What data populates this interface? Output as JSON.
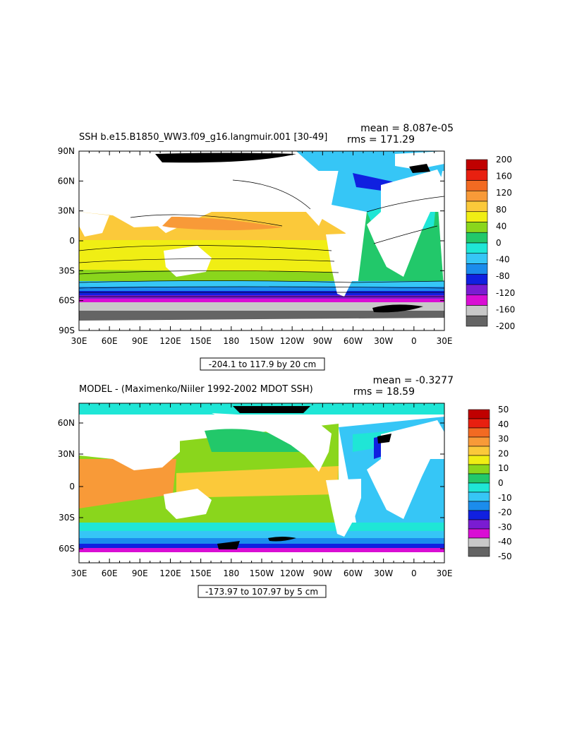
{
  "panels": [
    {
      "id": "ssh",
      "title": "SSH b.e15.B1850_WW3.f09_g16.langmuir.001 [30-49]",
      "stat_mean": "mean = 8.087e-05",
      "stat_rms": "rms = 171.29",
      "y_ticks": [
        "90N",
        "60N",
        "30N",
        "0",
        "30S",
        "60S",
        "90S"
      ],
      "x_ticks": [
        "30E",
        "60E",
        "90E",
        "120E",
        "150E",
        "180",
        "150W",
        "120W",
        "90W",
        "60W",
        "30W",
        "0",
        "30E"
      ],
      "contour_info": "-204.1 to 117.9 by 20 cm",
      "colorbar_labels": [
        "200",
        "160",
        "120",
        "80",
        "40",
        "0",
        "-40",
        "-80",
        "-120",
        "-160",
        "-200"
      ],
      "colorbar_colors": [
        "#c00000",
        "#e82010",
        "#f26a22",
        "#f89a38",
        "#fbc93a",
        "#f0ee14",
        "#8ad61c",
        "#22c86a",
        "#1fe6d6",
        "#36c6f6",
        "#1b8cec",
        "#1020e0",
        "#7a1cd2",
        "#d90ed4",
        "#c8c8c8",
        "#646464"
      ]
    },
    {
      "id": "diff",
      "title": "MODEL - (Maximenko/Niiler 1992-2002 MDOT SSH)",
      "stat_mean": "mean = -0.3277",
      "stat_rms": "rms = 18.59",
      "y_ticks": [
        "60N",
        "30N",
        "0",
        "30S",
        "60S"
      ],
      "x_ticks": [
        "30E",
        "60E",
        "90E",
        "120E",
        "150E",
        "180",
        "150W",
        "120W",
        "90W",
        "60W",
        "30W",
        "0",
        "30E"
      ],
      "contour_info": "-173.97 to 107.97 by 5 cm",
      "colorbar_labels": [
        "50",
        "40",
        "30",
        "20",
        "10",
        "0",
        "-10",
        "-20",
        "-30",
        "-40",
        "-50"
      ],
      "colorbar_colors": [
        "#c00000",
        "#e82010",
        "#f26a22",
        "#f89a38",
        "#fbc93a",
        "#f0ee14",
        "#8ad61c",
        "#22c86a",
        "#1fe6d6",
        "#36c6f6",
        "#1b8cec",
        "#1020e0",
        "#7a1cd2",
        "#d90ed4",
        "#c8c8c8",
        "#646464"
      ]
    }
  ]
}
